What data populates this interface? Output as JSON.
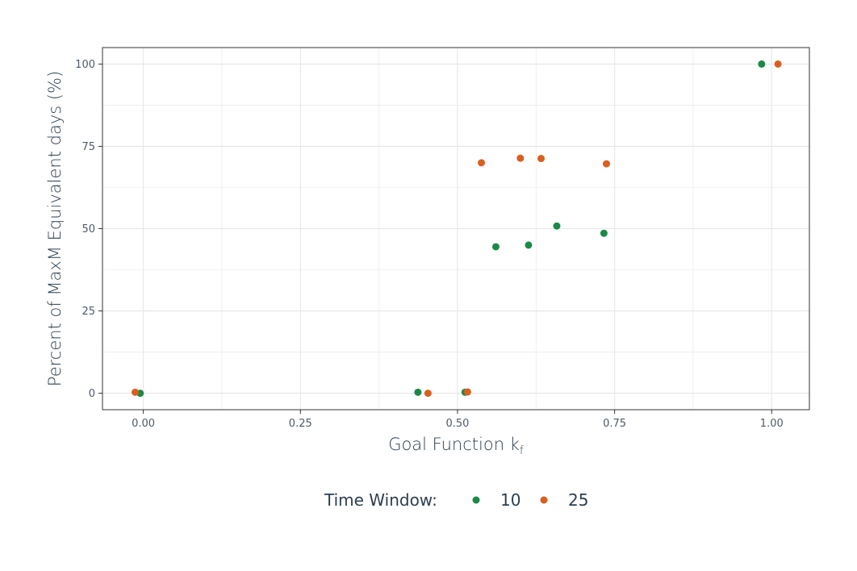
{
  "chart_data": {
    "type": "scatter",
    "xlabel": "Goal Function k",
    "xlabel_subscript": "f",
    "ylabel": "Percent of MaxM Equivalent days (%)",
    "xlim": [
      -0.065,
      1.06
    ],
    "ylim": [
      -5,
      105
    ],
    "x_ticks": [
      0.0,
      0.25,
      0.5,
      0.75,
      1.0
    ],
    "x_tick_labels": [
      "0.00",
      "0.25",
      "0.50",
      "0.75",
      "1.00"
    ],
    "y_ticks": [
      0,
      25,
      50,
      75,
      100
    ],
    "y_tick_labels": [
      "0",
      "25",
      "50",
      "75",
      "100"
    ],
    "grid": true,
    "legend_position": "bottom",
    "legend": {
      "title": "Time Window:"
    },
    "series": [
      {
        "name": "10",
        "color": "#1b8a46",
        "points": [
          {
            "x": -0.005,
            "y": 0.0
          },
          {
            "x": 0.437,
            "y": 0.3
          },
          {
            "x": 0.512,
            "y": 0.3
          },
          {
            "x": 0.561,
            "y": 44.5
          },
          {
            "x": 0.613,
            "y": 45.0
          },
          {
            "x": 0.658,
            "y": 50.8
          },
          {
            "x": 0.733,
            "y": 48.6
          },
          {
            "x": 0.984,
            "y": 100.0
          }
        ]
      },
      {
        "name": "25",
        "color": "#d95f1f",
        "points": [
          {
            "x": -0.013,
            "y": 0.3
          },
          {
            "x": 0.453,
            "y": 0.0
          },
          {
            "x": 0.516,
            "y": 0.4
          },
          {
            "x": 0.538,
            "y": 70.0
          },
          {
            "x": 0.6,
            "y": 71.4
          },
          {
            "x": 0.633,
            "y": 71.3
          },
          {
            "x": 0.737,
            "y": 69.7
          },
          {
            "x": 1.01,
            "y": 100.0
          }
        ]
      }
    ]
  }
}
